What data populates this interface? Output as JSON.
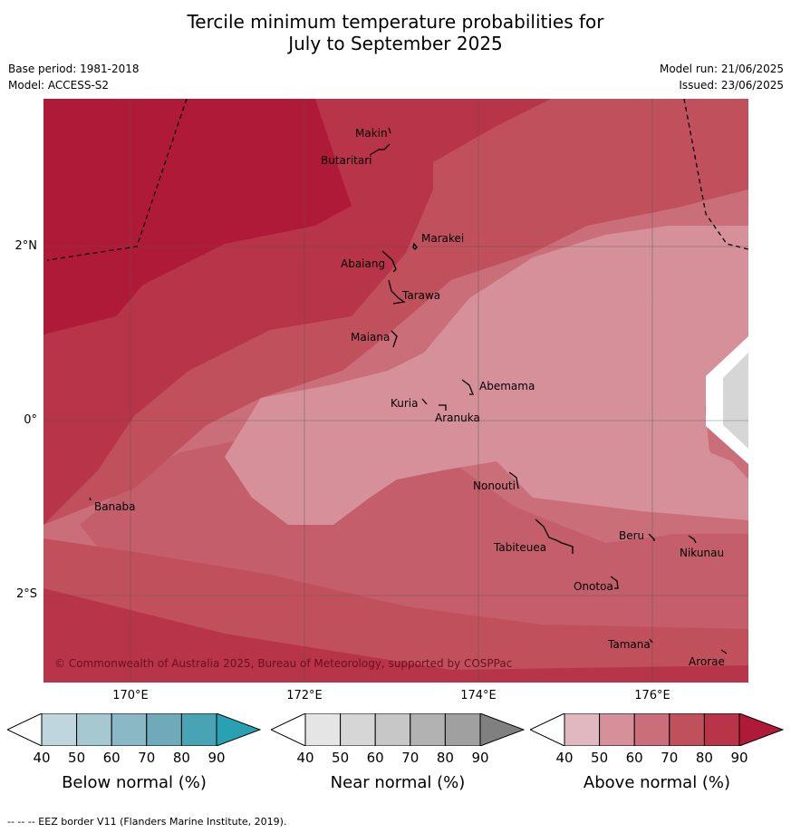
{
  "title_line1": "Tercile minimum temperature probabilities for",
  "title_line2": "July to September 2025",
  "base_period": "Base period: 1981-2018",
  "model": "Model: ACCESS-S2",
  "model_run": "Model run: 21/06/2025",
  "issued": "Issued: 23/06/2025",
  "lat_ticks": [
    "2°N",
    "0°",
    "2°S"
  ],
  "lon_ticks": [
    "170°E",
    "172°E",
    "174°E",
    "176°E"
  ],
  "places": [
    {
      "name": "Makin"
    },
    {
      "name": "Butaritari"
    },
    {
      "name": "Marakei"
    },
    {
      "name": "Abaiang"
    },
    {
      "name": "Tarawa"
    },
    {
      "name": "Maiana"
    },
    {
      "name": "Abemama"
    },
    {
      "name": "Kuria"
    },
    {
      "name": "Aranuka"
    },
    {
      "name": "Nonouti"
    },
    {
      "name": "Banaba"
    },
    {
      "name": "Beru"
    },
    {
      "name": "Tabiteuea"
    },
    {
      "name": "Nikunau"
    },
    {
      "name": "Onotoa"
    },
    {
      "name": "Tamana"
    },
    {
      "name": "Arorae"
    }
  ],
  "copyright": "© Commonwealth of Australia 2025, Bureau of Meteorology, supported by COSPPac",
  "colorbars": [
    {
      "label": "Below normal (%)",
      "ticks": [
        "40",
        "50",
        "60",
        "70",
        "80",
        "90"
      ],
      "colors": [
        "#c0d6de",
        "#a6c8d1",
        "#8ab8c5",
        "#6eaab9",
        "#48a3b4",
        "#2aa0b3"
      ]
    },
    {
      "label": "Near normal (%)",
      "ticks": [
        "40",
        "50",
        "60",
        "70",
        "80",
        "90"
      ],
      "colors": [
        "#e5e5e5",
        "#d6d6d6",
        "#c7c7c7",
        "#b2b2b2",
        "#a0a0a0",
        "#808080"
      ]
    },
    {
      "label": "Above normal (%)",
      "ticks": [
        "40",
        "50",
        "60",
        "70",
        "80",
        "90"
      ],
      "colors": [
        "#e2b8c0",
        "#d5909a",
        "#ca6f7a",
        "#c0505c",
        "#b83448",
        "#b01a39"
      ]
    }
  ],
  "footer": "--  --  -- EEZ border V11 (Flanders Marine Institute, 2019)."
}
